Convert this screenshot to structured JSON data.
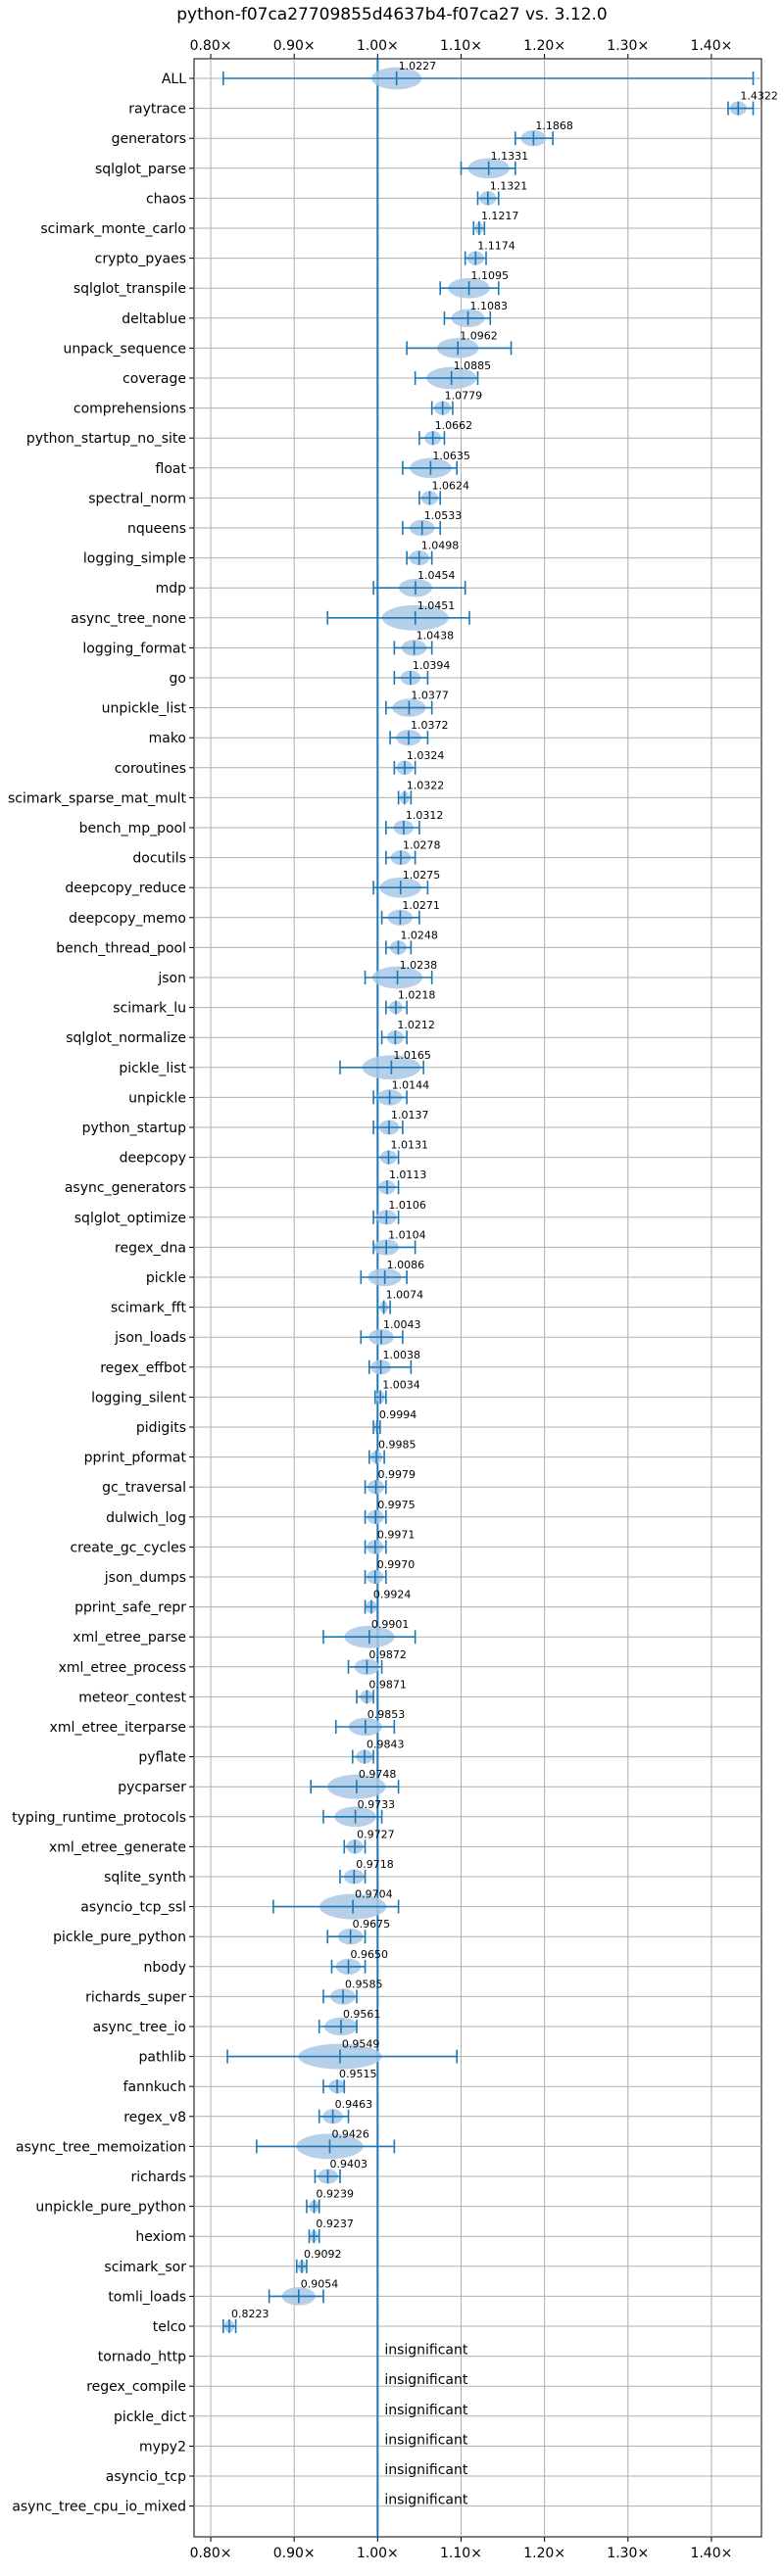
{
  "chart_data": {
    "type": "violin",
    "title": "python-f07ca27709855d4637b4-f07ca27 vs. 3.12.0",
    "xlim": [
      0.78,
      1.46
    ],
    "xticks": [
      0.8,
      0.9,
      1.0,
      1.1,
      1.2,
      1.3,
      1.4
    ],
    "xtick_labels": [
      "0.80×",
      "0.90×",
      "1.00×",
      "1.10×",
      "1.20×",
      "1.30×",
      "1.40×"
    ],
    "reference_line": 1.0,
    "grid": true,
    "line_color": "#1f77b4",
    "violin_color": "#aac8e6",
    "benchmarks": [
      {
        "name": "ALL",
        "mean": 1.0227,
        "label": "1.0227",
        "lo": 0.815,
        "hi": 1.45,
        "spread": 0.03
      },
      {
        "name": "raytrace",
        "mean": 1.4322,
        "label": "1.4322",
        "lo": 1.42,
        "hi": 1.45,
        "spread": 0.01
      },
      {
        "name": "generators",
        "mean": 1.1868,
        "label": "1.1868",
        "lo": 1.165,
        "hi": 1.21,
        "spread": 0.015
      },
      {
        "name": "sqlglot_parse",
        "mean": 1.1331,
        "label": "1.1331",
        "lo": 1.1,
        "hi": 1.165,
        "spread": 0.025
      },
      {
        "name": "chaos",
        "mean": 1.1321,
        "label": "1.1321",
        "lo": 1.12,
        "hi": 1.145,
        "spread": 0.01
      },
      {
        "name": "scimark_monte_carlo",
        "mean": 1.1217,
        "label": "1.1217",
        "lo": 1.115,
        "hi": 1.128,
        "spread": 0.005
      },
      {
        "name": "crypto_pyaes",
        "mean": 1.1174,
        "label": "1.1174",
        "lo": 1.105,
        "hi": 1.13,
        "spread": 0.01
      },
      {
        "name": "sqlglot_transpile",
        "mean": 1.1095,
        "label": "1.1095",
        "lo": 1.075,
        "hi": 1.145,
        "spread": 0.025
      },
      {
        "name": "deltablue",
        "mean": 1.1083,
        "label": "1.1083",
        "lo": 1.08,
        "hi": 1.135,
        "spread": 0.02
      },
      {
        "name": "unpack_sequence",
        "mean": 1.0962,
        "label": "1.0962",
        "lo": 1.035,
        "hi": 1.16,
        "spread": 0.025
      },
      {
        "name": "coverage",
        "mean": 1.0885,
        "label": "1.0885",
        "lo": 1.045,
        "hi": 1.12,
        "spread": 0.03
      },
      {
        "name": "comprehensions",
        "mean": 1.0779,
        "label": "1.0779",
        "lo": 1.065,
        "hi": 1.09,
        "spread": 0.01
      },
      {
        "name": "python_startup_no_site",
        "mean": 1.0662,
        "label": "1.0662",
        "lo": 1.05,
        "hi": 1.08,
        "spread": 0.01
      },
      {
        "name": "float",
        "mean": 1.0635,
        "label": "1.0635",
        "lo": 1.03,
        "hi": 1.095,
        "spread": 0.025
      },
      {
        "name": "spectral_norm",
        "mean": 1.0624,
        "label": "1.0624",
        "lo": 1.05,
        "hi": 1.075,
        "spread": 0.01
      },
      {
        "name": "nqueens",
        "mean": 1.0533,
        "label": "1.0533",
        "lo": 1.03,
        "hi": 1.075,
        "spread": 0.015
      },
      {
        "name": "logging_simple",
        "mean": 1.0498,
        "label": "1.0498",
        "lo": 1.035,
        "hi": 1.065,
        "spread": 0.012
      },
      {
        "name": "mdp",
        "mean": 1.0454,
        "label": "1.0454",
        "lo": 0.995,
        "hi": 1.105,
        "spread": 0.02
      },
      {
        "name": "async_tree_none",
        "mean": 1.0451,
        "label": "1.0451",
        "lo": 0.94,
        "hi": 1.11,
        "spread": 0.04
      },
      {
        "name": "logging_format",
        "mean": 1.0438,
        "label": "1.0438",
        "lo": 1.02,
        "hi": 1.065,
        "spread": 0.015
      },
      {
        "name": "go",
        "mean": 1.0394,
        "label": "1.0394",
        "lo": 1.02,
        "hi": 1.06,
        "spread": 0.012
      },
      {
        "name": "unpickle_list",
        "mean": 1.0377,
        "label": "1.0377",
        "lo": 1.01,
        "hi": 1.065,
        "spread": 0.02
      },
      {
        "name": "mako",
        "mean": 1.0372,
        "label": "1.0372",
        "lo": 1.015,
        "hi": 1.06,
        "spread": 0.015
      },
      {
        "name": "coroutines",
        "mean": 1.0324,
        "label": "1.0324",
        "lo": 1.02,
        "hi": 1.045,
        "spread": 0.01
      },
      {
        "name": "scimark_sparse_mat_mult",
        "mean": 1.0322,
        "label": "1.0322",
        "lo": 1.025,
        "hi": 1.04,
        "spread": 0.006
      },
      {
        "name": "bench_mp_pool",
        "mean": 1.0312,
        "label": "1.0312",
        "lo": 1.01,
        "hi": 1.05,
        "spread": 0.012
      },
      {
        "name": "docutils",
        "mean": 1.0278,
        "label": "1.0278",
        "lo": 1.01,
        "hi": 1.045,
        "spread": 0.012
      },
      {
        "name": "deepcopy_reduce",
        "mean": 1.0275,
        "label": "1.0275",
        "lo": 0.995,
        "hi": 1.06,
        "spread": 0.025
      },
      {
        "name": "deepcopy_memo",
        "mean": 1.0271,
        "label": "1.0271",
        "lo": 1.005,
        "hi": 1.05,
        "spread": 0.015
      },
      {
        "name": "bench_thread_pool",
        "mean": 1.0248,
        "label": "1.0248",
        "lo": 1.01,
        "hi": 1.04,
        "spread": 0.01
      },
      {
        "name": "json",
        "mean": 1.0238,
        "label": "1.0238",
        "lo": 0.985,
        "hi": 1.065,
        "spread": 0.03
      },
      {
        "name": "scimark_lu",
        "mean": 1.0218,
        "label": "1.0218",
        "lo": 1.01,
        "hi": 1.035,
        "spread": 0.008
      },
      {
        "name": "sqlglot_normalize",
        "mean": 1.0212,
        "label": "1.0212",
        "lo": 1.005,
        "hi": 1.035,
        "spread": 0.01
      },
      {
        "name": "pickle_list",
        "mean": 1.0165,
        "label": "1.0165",
        "lo": 0.955,
        "hi": 1.055,
        "spread": 0.035
      },
      {
        "name": "unpickle",
        "mean": 1.0144,
        "label": "1.0144",
        "lo": 0.995,
        "hi": 1.035,
        "spread": 0.015
      },
      {
        "name": "python_startup",
        "mean": 1.0137,
        "label": "1.0137",
        "lo": 0.995,
        "hi": 1.03,
        "spread": 0.012
      },
      {
        "name": "deepcopy",
        "mean": 1.0131,
        "label": "1.0131",
        "lo": 1.0,
        "hi": 1.025,
        "spread": 0.01
      },
      {
        "name": "async_generators",
        "mean": 1.0113,
        "label": "1.0113",
        "lo": 1.0,
        "hi": 1.025,
        "spread": 0.01
      },
      {
        "name": "sqlglot_optimize",
        "mean": 1.0106,
        "label": "1.0106",
        "lo": 0.995,
        "hi": 1.025,
        "spread": 0.012
      },
      {
        "name": "regex_dna",
        "mean": 1.0104,
        "label": "1.0104",
        "lo": 0.995,
        "hi": 1.045,
        "spread": 0.015
      },
      {
        "name": "pickle",
        "mean": 1.0086,
        "label": "1.0086",
        "lo": 0.98,
        "hi": 1.035,
        "spread": 0.02
      },
      {
        "name": "scimark_fft",
        "mean": 1.0074,
        "label": "1.0074",
        "lo": 1.0,
        "hi": 1.015,
        "spread": 0.005
      },
      {
        "name": "json_loads",
        "mean": 1.0043,
        "label": "1.0043",
        "lo": 0.98,
        "hi": 1.03,
        "spread": 0.015
      },
      {
        "name": "regex_effbot",
        "mean": 1.0038,
        "label": "1.0038",
        "lo": 0.99,
        "hi": 1.04,
        "spread": 0.012
      },
      {
        "name": "logging_silent",
        "mean": 1.0034,
        "label": "1.0034",
        "lo": 0.997,
        "hi": 1.01,
        "spread": 0.005
      },
      {
        "name": "pidigits",
        "mean": 0.9994,
        "label": "0.9994",
        "lo": 0.995,
        "hi": 1.003,
        "spread": 0.003
      },
      {
        "name": "pprint_pformat",
        "mean": 0.9985,
        "label": "0.9985",
        "lo": 0.99,
        "hi": 1.008,
        "spread": 0.007
      },
      {
        "name": "gc_traversal",
        "mean": 0.9979,
        "label": "0.9979",
        "lo": 0.985,
        "hi": 1.01,
        "spread": 0.01
      },
      {
        "name": "dulwich_log",
        "mean": 0.9975,
        "label": "0.9975",
        "lo": 0.985,
        "hi": 1.01,
        "spread": 0.01
      },
      {
        "name": "create_gc_cycles",
        "mean": 0.9971,
        "label": "0.9971",
        "lo": 0.985,
        "hi": 1.01,
        "spread": 0.01
      },
      {
        "name": "json_dumps",
        "mean": 0.997,
        "label": "0.9970",
        "lo": 0.985,
        "hi": 1.01,
        "spread": 0.01
      },
      {
        "name": "pprint_safe_repr",
        "mean": 0.9924,
        "label": "0.9924",
        "lo": 0.985,
        "hi": 1.0,
        "spread": 0.007
      },
      {
        "name": "xml_etree_parse",
        "mean": 0.9901,
        "label": "0.9901",
        "lo": 0.935,
        "hi": 1.045,
        "spread": 0.03
      },
      {
        "name": "xml_etree_process",
        "mean": 0.9872,
        "label": "0.9872",
        "lo": 0.965,
        "hi": 1.005,
        "spread": 0.015
      },
      {
        "name": "meteor_contest",
        "mean": 0.9871,
        "label": "0.9871",
        "lo": 0.975,
        "hi": 0.995,
        "spread": 0.008
      },
      {
        "name": "xml_etree_iterparse",
        "mean": 0.9853,
        "label": "0.9853",
        "lo": 0.95,
        "hi": 1.02,
        "spread": 0.02
      },
      {
        "name": "pyflate",
        "mean": 0.9843,
        "label": "0.9843",
        "lo": 0.97,
        "hi": 0.995,
        "spread": 0.01
      },
      {
        "name": "pycparser",
        "mean": 0.9748,
        "label": "0.9748",
        "lo": 0.92,
        "hi": 1.025,
        "spread": 0.035
      },
      {
        "name": "typing_runtime_protocols",
        "mean": 0.9733,
        "label": "0.9733",
        "lo": 0.935,
        "hi": 1.005,
        "spread": 0.025
      },
      {
        "name": "xml_etree_generate",
        "mean": 0.9727,
        "label": "0.9727",
        "lo": 0.96,
        "hi": 0.985,
        "spread": 0.01
      },
      {
        "name": "sqlite_synth",
        "mean": 0.9718,
        "label": "0.9718",
        "lo": 0.955,
        "hi": 0.985,
        "spread": 0.012
      },
      {
        "name": "asyncio_tcp_ssl",
        "mean": 0.9704,
        "label": "0.9704",
        "lo": 0.875,
        "hi": 1.025,
        "spread": 0.04
      },
      {
        "name": "pickle_pure_python",
        "mean": 0.9675,
        "label": "0.9675",
        "lo": 0.94,
        "hi": 0.985,
        "spread": 0.015
      },
      {
        "name": "nbody",
        "mean": 0.965,
        "label": "0.9650",
        "lo": 0.945,
        "hi": 0.985,
        "spread": 0.015
      },
      {
        "name": "richards_super",
        "mean": 0.9585,
        "label": "0.9585",
        "lo": 0.935,
        "hi": 0.975,
        "spread": 0.015
      },
      {
        "name": "async_tree_io",
        "mean": 0.9561,
        "label": "0.9561",
        "lo": 0.93,
        "hi": 0.975,
        "spread": 0.02
      },
      {
        "name": "pathlib",
        "mean": 0.9549,
        "label": "0.9549",
        "lo": 0.82,
        "hi": 1.095,
        "spread": 0.05
      },
      {
        "name": "fannkuch",
        "mean": 0.9515,
        "label": "0.9515",
        "lo": 0.935,
        "hi": 0.96,
        "spread": 0.01
      },
      {
        "name": "regex_v8",
        "mean": 0.9463,
        "label": "0.9463",
        "lo": 0.93,
        "hi": 0.965,
        "spread": 0.012
      },
      {
        "name": "async_tree_memoization",
        "mean": 0.9426,
        "label": "0.9426",
        "lo": 0.855,
        "hi": 1.02,
        "spread": 0.04
      },
      {
        "name": "richards",
        "mean": 0.9403,
        "label": "0.9403",
        "lo": 0.925,
        "hi": 0.955,
        "spread": 0.012
      },
      {
        "name": "unpickle_pure_python",
        "mean": 0.9239,
        "label": "0.9239",
        "lo": 0.915,
        "hi": 0.93,
        "spread": 0.006
      },
      {
        "name": "hexiom",
        "mean": 0.9237,
        "label": "0.9237",
        "lo": 0.918,
        "hi": 0.93,
        "spread": 0.005
      },
      {
        "name": "scimark_sor",
        "mean": 0.9092,
        "label": "0.9092",
        "lo": 0.903,
        "hi": 0.915,
        "spread": 0.005
      },
      {
        "name": "tomli_loads",
        "mean": 0.9054,
        "label": "0.9054",
        "lo": 0.87,
        "hi": 0.935,
        "spread": 0.02
      },
      {
        "name": "telco",
        "mean": 0.8223,
        "label": "0.8223",
        "lo": 0.815,
        "hi": 0.83,
        "spread": 0.006
      },
      {
        "name": "tornado_http",
        "insignificant": true,
        "label": "insignificant"
      },
      {
        "name": "regex_compile",
        "insignificant": true,
        "label": "insignificant"
      },
      {
        "name": "pickle_dict",
        "insignificant": true,
        "label": "insignificant"
      },
      {
        "name": "mypy2",
        "insignificant": true,
        "label": "insignificant"
      },
      {
        "name": "asyncio_tcp",
        "insignificant": true,
        "label": "insignificant"
      },
      {
        "name": "async_tree_cpu_io_mixed",
        "insignificant": true,
        "label": "insignificant"
      }
    ]
  }
}
